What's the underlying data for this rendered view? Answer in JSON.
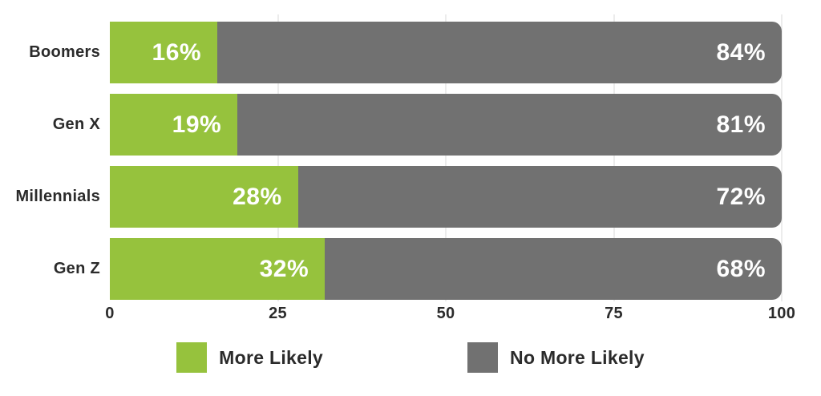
{
  "chart_data": {
    "type": "bar",
    "orientation": "horizontal",
    "stacked": true,
    "categories": [
      "Boomers",
      "Gen X",
      "Millennials",
      "Gen Z"
    ],
    "series": [
      {
        "name": "More Likely",
        "color": "#96C23D",
        "values": [
          16,
          19,
          28,
          32
        ],
        "labels": [
          "16%",
          "19%",
          "28%",
          "32%"
        ]
      },
      {
        "name": "No More Likely",
        "color": "#717171",
        "values": [
          84,
          81,
          72,
          68
        ],
        "labels": [
          "84%",
          "81%",
          "72%",
          "68%"
        ]
      }
    ],
    "xlim": [
      0,
      100
    ],
    "x_ticks": [
      "0",
      "25",
      "50",
      "75",
      "100"
    ],
    "grid": true,
    "legend_position": "bottom"
  },
  "colors": {
    "more_likely": "#96C23D",
    "no_more_likely": "#717171",
    "value_label": "#FFFFFF",
    "axis_text": "#2B2B2B",
    "gridline": "#ECECEC",
    "background": "#FFFFFF"
  },
  "legend": {
    "items": [
      {
        "label": "More Likely",
        "color": "#96C23D"
      },
      {
        "label": "No More Likely",
        "color": "#717171"
      }
    ]
  }
}
